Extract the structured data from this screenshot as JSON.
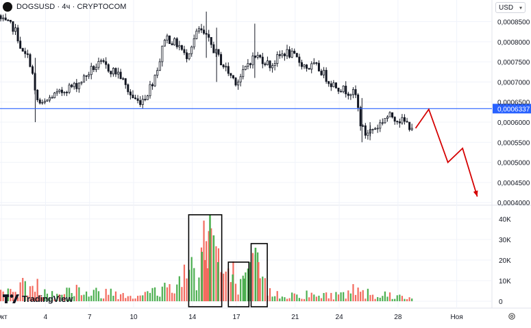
{
  "header": {
    "symbol_title": "DOGSUSD · 4ч · CRYPTOCOM"
  },
  "currency_button": {
    "label": "USD"
  },
  "watermark": {
    "text": "TradingView"
  },
  "icons": {
    "logo": "coin-logo-icon",
    "currency_dropdown": "chevron-down-icon",
    "settings": "gear-icon",
    "watermark": "tradingview-logo-icon"
  },
  "colors": {
    "up": "#26a69a",
    "down": "#ef5350",
    "candle": "#131722",
    "vol_up": "#4caf50",
    "vol_down": "#f36b5f",
    "level_line": "#2962ff",
    "forecast": "#d50000",
    "box": "#000000",
    "grid": "#f0f3fa",
    "axis_text": "#131722"
  },
  "chart_data": [
    {
      "type": "candlestick",
      "title": "DOGSUSD · 4ч · CRYPTOCOM",
      "x_tick_labels": [
        "Окт",
        "4",
        "7",
        "10",
        "14",
        "17",
        "21",
        "24",
        "28",
        "Ноя"
      ],
      "x_tick_days": [
        1,
        4,
        7,
        10,
        14,
        17,
        21,
        24,
        28,
        32
      ],
      "y_tick_labels": [
        "0,0004000",
        "0,0004500",
        "0,0005000",
        "0,0005500",
        "0,0006000",
        "0,0006500",
        "0,0007000",
        "0,0007500",
        "0,0008000",
        "0,0008500"
      ],
      "ylim": [
        0.000397,
        0.000897
      ],
      "xlim_days": [
        0.9,
        34.4
      ],
      "price_path": [
        [
          0.95,
          0.000865
        ],
        [
          1.2,
          0.00085
        ],
        [
          1.5,
          0.000845
        ],
        [
          2.0,
          0.000835
        ],
        [
          2.3,
          0.00081
        ],
        [
          2.6,
          0.00077
        ],
        [
          3.0,
          0.00076
        ],
        [
          3.2,
          0.00074
        ],
        [
          3.5,
          0.00066
        ],
        [
          3.9,
          0.00064
        ],
        [
          4.2,
          0.00065
        ],
        [
          4.6,
          0.000665
        ],
        [
          5.1,
          0.00067
        ],
        [
          5.6,
          0.000685
        ],
        [
          6.2,
          0.00069
        ],
        [
          6.8,
          0.00071
        ],
        [
          7.4,
          0.000735
        ],
        [
          8.0,
          0.000745
        ],
        [
          8.6,
          0.00073
        ],
        [
          9.2,
          0.00072
        ],
        [
          9.6,
          0.00069
        ],
        [
          10.0,
          0.000665
        ],
        [
          10.5,
          0.00065
        ],
        [
          11.0,
          0.000665
        ],
        [
          11.5,
          0.000705
        ],
        [
          12.0,
          0.00076
        ],
        [
          12.3,
          0.000815
        ],
        [
          12.8,
          0.0008
        ],
        [
          13.3,
          0.00079
        ],
        [
          13.7,
          0.00076
        ],
        [
          14.2,
          0.0008
        ],
        [
          14.6,
          0.00083
        ],
        [
          15.0,
          0.000815
        ],
        [
          15.4,
          0.000795
        ],
        [
          15.8,
          0.00077
        ],
        [
          16.3,
          0.00074
        ],
        [
          16.8,
          0.000715
        ],
        [
          17.2,
          0.0007
        ],
        [
          17.6,
          0.00072
        ],
        [
          18.0,
          0.00075
        ],
        [
          18.5,
          0.000765
        ],
        [
          19.0,
          0.000755
        ],
        [
          19.5,
          0.00074
        ],
        [
          20.0,
          0.00076
        ],
        [
          20.5,
          0.000775
        ],
        [
          21.0,
          0.000765
        ],
        [
          21.5,
          0.00075
        ],
        [
          22.0,
          0.000735
        ],
        [
          22.5,
          0.00074
        ],
        [
          23.0,
          0.000725
        ],
        [
          23.5,
          0.0007
        ],
        [
          24.0,
          0.00069
        ],
        [
          24.5,
          0.00068
        ],
        [
          25.0,
          0.000675
        ],
        [
          25.3,
          0.000665
        ],
        [
          25.6,
          0.0006
        ],
        [
          25.9,
          0.00057
        ],
        [
          26.3,
          0.00058
        ],
        [
          26.8,
          0.00059
        ],
        [
          27.3,
          0.000612
        ],
        [
          27.8,
          0.000615
        ],
        [
          28.3,
          0.000605
        ],
        [
          28.7,
          0.000598
        ],
        [
          29.0,
          0.00059
        ]
      ],
      "spike_wicks": [
        [
          3.3,
          0.0006,
          0.00076
        ],
        [
          14.95,
          0.00076,
          0.000875
        ],
        [
          15.65,
          0.0007,
          0.000835
        ],
        [
          18.25,
          0.00071,
          0.000845
        ],
        [
          25.55,
          0.00055,
          0.00066
        ],
        [
          26.1,
          0.000555,
          0.0006
        ]
      ],
      "level_line": {
        "price": 0.0006337,
        "label": "0,0006337"
      },
      "forecast_path": [
        [
          29.2,
          0.000585
        ],
        [
          30.1,
          0.000632
        ],
        [
          31.4,
          0.0005
        ],
        [
          32.4,
          0.000535
        ],
        [
          33.4,
          0.000415
        ]
      ],
      "grid": true
    },
    {
      "type": "bar",
      "title": "",
      "y_tick_labels": [
        "0",
        "10K",
        "20K",
        "30K",
        "40K"
      ],
      "ylim": [
        0,
        46000
      ],
      "volume_profile": [
        [
          1.0,
          3500
        ],
        [
          2.0,
          6000
        ],
        [
          3.0,
          8000
        ],
        [
          4.0,
          5000
        ],
        [
          5.0,
          4000
        ],
        [
          6.0,
          6000
        ],
        [
          7.0,
          3500
        ],
        [
          8.0,
          4500
        ],
        [
          9.0,
          4000
        ],
        [
          10.0,
          3000
        ],
        [
          11.0,
          3500
        ],
        [
          12.0,
          6000
        ],
        [
          13.0,
          8500
        ],
        [
          13.8,
          16000
        ],
        [
          14.5,
          22000
        ],
        [
          15.0,
          36000
        ],
        [
          15.7,
          24000
        ],
        [
          16.2,
          9000
        ],
        [
          16.8,
          12000
        ],
        [
          17.3,
          7000
        ],
        [
          17.9,
          10000
        ],
        [
          18.3,
          21000
        ],
        [
          18.9,
          7000
        ],
        [
          19.6,
          3500
        ],
        [
          20.5,
          3000
        ],
        [
          21.5,
          3500
        ],
        [
          22.5,
          2500
        ],
        [
          23.5,
          3000
        ],
        [
          24.5,
          3500
        ],
        [
          25.4,
          7000
        ],
        [
          25.8,
          5000
        ],
        [
          26.5,
          3500
        ],
        [
          27.5,
          3000
        ],
        [
          28.5,
          2000
        ],
        [
          29.0,
          1500
        ]
      ],
      "highlight_boxes_days": [
        [
          13.75,
          16.0
        ],
        [
          16.45,
          17.85
        ],
        [
          18.0,
          19.1
        ]
      ]
    }
  ]
}
